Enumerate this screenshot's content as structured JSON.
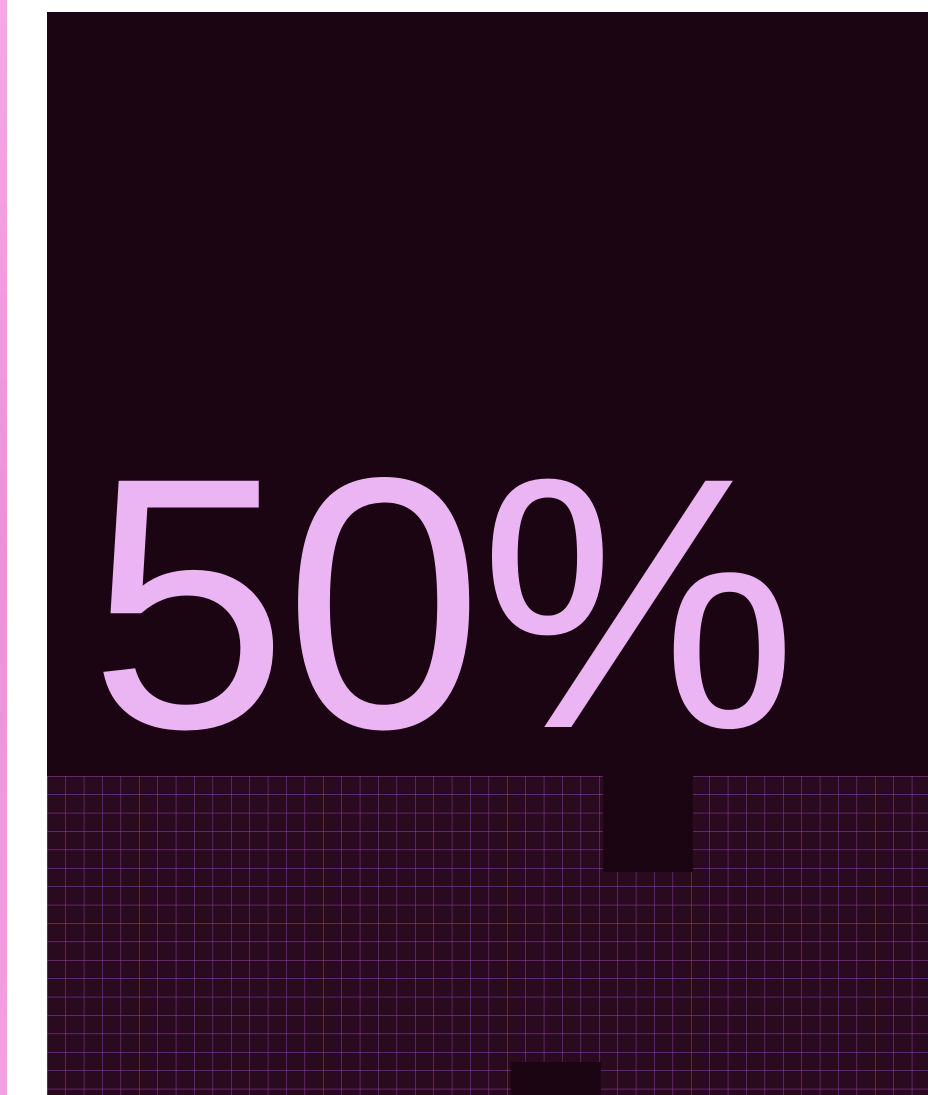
{
  "headline": {
    "value": "50%"
  },
  "colors": {
    "panel_background": "#1c0512",
    "headline_text": "#ebb4f2",
    "grid_line": "#b24fd6",
    "left_strip": "#f3a0e0"
  }
}
